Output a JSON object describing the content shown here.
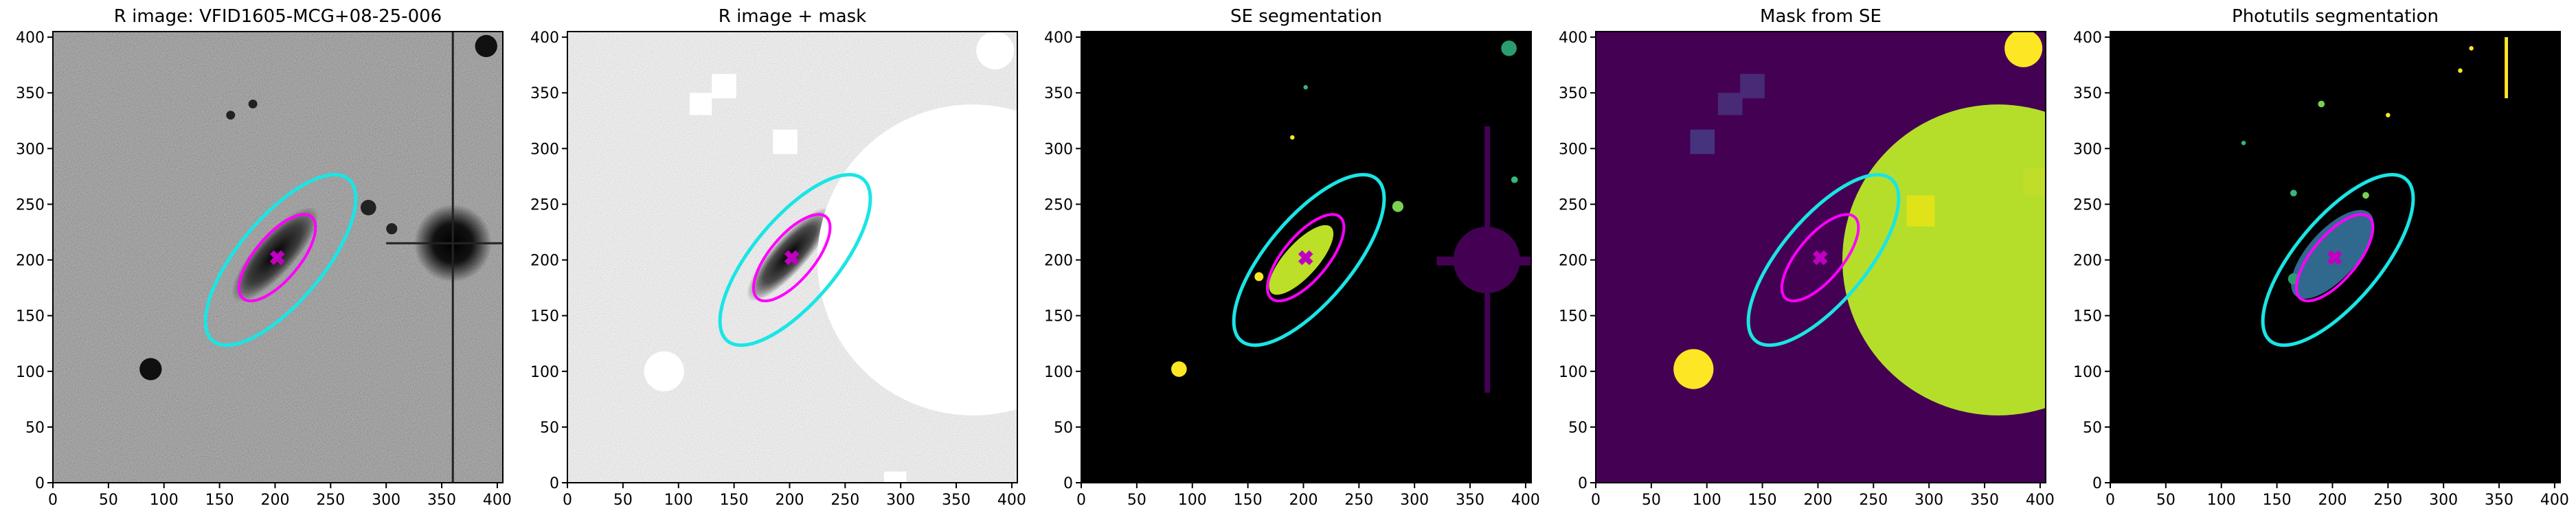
{
  "chart_data": [
    {
      "type": "image",
      "title": "R image: VFID1605-MCG+08-25-006",
      "background": "#808080",
      "xlim": [
        0,
        405
      ],
      "ylim": [
        0,
        405
      ],
      "xticks": [
        0,
        50,
        100,
        150,
        200,
        250,
        300,
        350,
        400
      ],
      "yticks": [
        0,
        50,
        100,
        150,
        200,
        250,
        300,
        350,
        400
      ]
    },
    {
      "type": "image",
      "title": "R image + mask",
      "background": "#c8c8c8",
      "xlim": [
        0,
        405
      ],
      "ylim": [
        0,
        405
      ],
      "xticks": [
        0,
        50,
        100,
        150,
        200,
        250,
        300,
        350,
        400
      ],
      "yticks": [
        0,
        50,
        100,
        150,
        200,
        250,
        300,
        350,
        400
      ]
    },
    {
      "type": "image",
      "title": "SE segmentation",
      "background": "#000000",
      "xlim": [
        0,
        405
      ],
      "ylim": [
        0,
        405
      ],
      "xticks": [
        0,
        50,
        100,
        150,
        200,
        250,
        300,
        350,
        400
      ],
      "yticks": [
        0,
        50,
        100,
        150,
        200,
        250,
        300,
        350,
        400
      ]
    },
    {
      "type": "image",
      "title": "Mask from SE",
      "background": "#440154",
      "xlim": [
        0,
        405
      ],
      "ylim": [
        0,
        405
      ],
      "xticks": [
        0,
        50,
        100,
        150,
        200,
        250,
        300,
        350,
        400
      ],
      "yticks": [
        0,
        50,
        100,
        150,
        200,
        250,
        300,
        350,
        400
      ]
    },
    {
      "type": "image",
      "title": "Photutils segmentation",
      "background": "#000000",
      "xlim": [
        0,
        405
      ],
      "ylim": [
        0,
        405
      ],
      "xticks": [
        0,
        50,
        100,
        150,
        200,
        250,
        300,
        350,
        400
      ],
      "yticks": [
        0,
        50,
        100,
        150,
        200,
        250,
        300,
        350,
        400
      ]
    }
  ]
}
